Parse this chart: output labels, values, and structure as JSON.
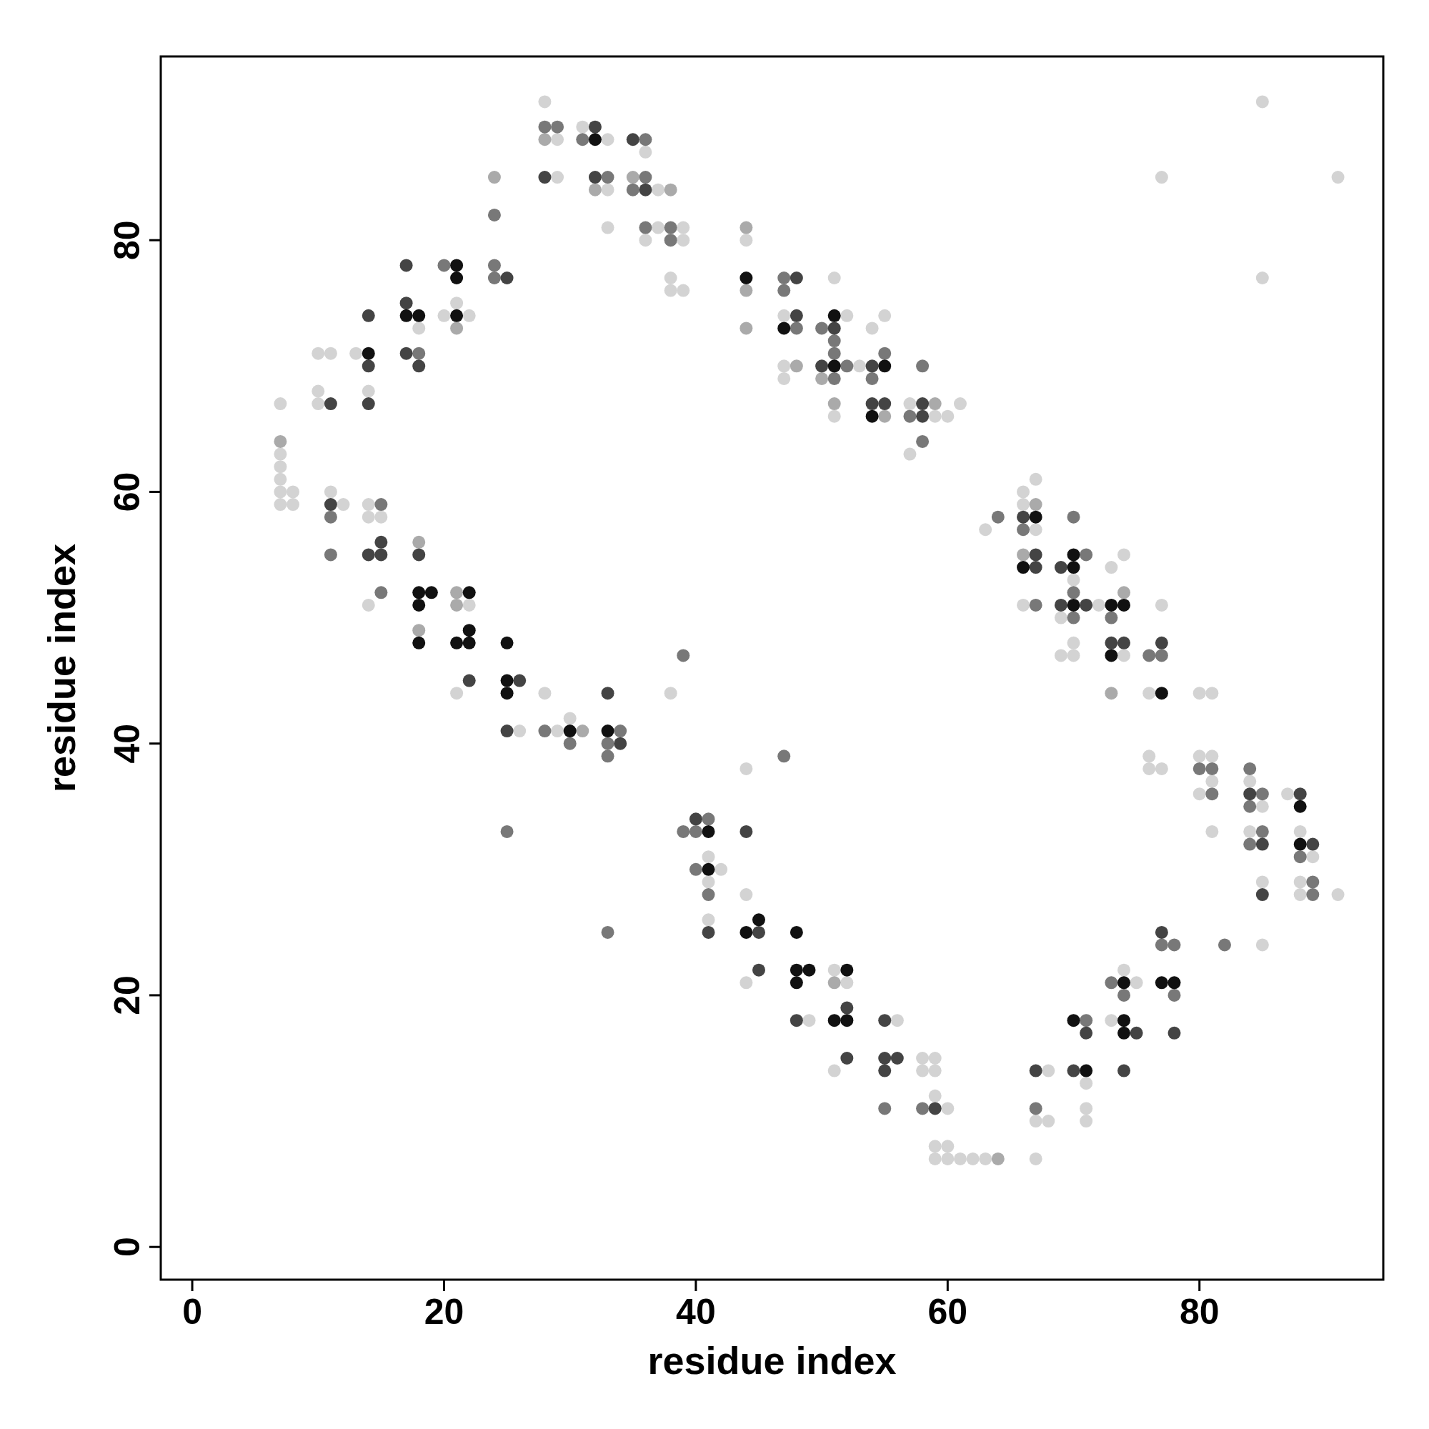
{
  "chart_data": {
    "type": "scatter",
    "xlabel": "residue index",
    "ylabel": "residue index",
    "xlim": [
      -2.5,
      94.6
    ],
    "ylim": [
      -2.6,
      94.6
    ],
    "xticks": [
      0,
      20,
      40,
      60,
      80
    ],
    "yticks": [
      0,
      20,
      40,
      60,
      80
    ],
    "marker": "circle",
    "series": [
      {
        "color": "#d3d3d3",
        "x": [
          7,
          7,
          7,
          7,
          7,
          7,
          8,
          8,
          10,
          10,
          10,
          11,
          13,
          14,
          18,
          20,
          21,
          22,
          28,
          29,
          29,
          31,
          33,
          33,
          33,
          36,
          36,
          37,
          37,
          38,
          38,
          39,
          39,
          39,
          44,
          47,
          47,
          47,
          51,
          51,
          52,
          53,
          54,
          55,
          57,
          57,
          59,
          60,
          61,
          63,
          66,
          66,
          66,
          67,
          67,
          69,
          69,
          70,
          70,
          70,
          72,
          73,
          74,
          74,
          76,
          76,
          76,
          77,
          77,
          80,
          80,
          80,
          81,
          81,
          81,
          81,
          84,
          84,
          85,
          85,
          85,
          87,
          88,
          88,
          88,
          89,
          91,
          91,
          85,
          85,
          77,
          11,
          12,
          14,
          14,
          14,
          15,
          21,
          22,
          26,
          28,
          29,
          30,
          38,
          41,
          41,
          41,
          42,
          44,
          44,
          44,
          49,
          51,
          51,
          52,
          56,
          58,
          58,
          59,
          59,
          59,
          59,
          59,
          60,
          60,
          60,
          61,
          62,
          63,
          67,
          67,
          68,
          68,
          71,
          71,
          71,
          73,
          74,
          75
        ],
        "values": [
          67,
          63,
          62,
          61,
          60,
          59,
          60,
          59,
          71,
          68,
          67,
          71,
          71,
          68,
          73,
          74,
          75,
          74,
          91,
          88,
          85,
          89,
          88,
          84,
          81,
          87,
          80,
          84,
          81,
          77,
          76,
          81,
          80,
          76,
          80,
          74,
          70,
          69,
          77,
          66,
          74,
          70,
          73,
          74,
          67,
          63,
          66,
          66,
          67,
          57,
          60,
          59,
          51,
          61,
          57,
          50,
          47,
          53,
          48,
          47,
          51,
          54,
          55,
          47,
          44,
          39,
          38,
          51,
          38,
          44,
          39,
          36,
          44,
          39,
          37,
          33,
          37,
          33,
          35,
          29,
          24,
          36,
          33,
          29,
          28,
          31,
          28,
          85,
          91,
          77,
          85,
          60,
          59,
          59,
          58,
          51,
          58,
          44,
          51,
          41,
          44,
          41,
          42,
          44,
          31,
          29,
          26,
          30,
          38,
          28,
          21,
          18,
          22,
          14,
          21,
          18,
          15,
          14,
          15,
          14,
          12,
          8,
          7,
          11,
          8,
          7,
          7,
          7,
          7,
          10,
          7,
          14,
          10,
          13,
          11,
          10,
          18,
          22,
          21
        ]
      },
      {
        "color": "#aaaaaa",
        "x": [
          7,
          21,
          24,
          28,
          32,
          35,
          38,
          44,
          44,
          44,
          48,
          50,
          51,
          55,
          59,
          66,
          67,
          73,
          74,
          18,
          18,
          21,
          21,
          31,
          51,
          64
        ],
        "values": [
          64,
          73,
          85,
          88,
          84,
          85,
          84,
          81,
          76,
          73,
          70,
          69,
          67,
          66,
          67,
          55,
          59,
          44,
          52,
          56,
          49,
          52,
          51,
          41,
          21,
          7
        ]
      },
      {
        "color": "#787878",
        "x": [
          18,
          20,
          24,
          24,
          24,
          28,
          29,
          31,
          33,
          35,
          36,
          36,
          36,
          38,
          38,
          47,
          47,
          48,
          50,
          51,
          51,
          51,
          52,
          54,
          55,
          57,
          58,
          58,
          64,
          66,
          67,
          70,
          70,
          70,
          71,
          73,
          76,
          77,
          80,
          81,
          81,
          84,
          84,
          84,
          85,
          85,
          88,
          89,
          89,
          82,
          11,
          11,
          15,
          15,
          25,
          28,
          30,
          33,
          33,
          33,
          34,
          39,
          39,
          40,
          40,
          41,
          41,
          47,
          55,
          58,
          67,
          71,
          73,
          74,
          77,
          78,
          78
        ],
        "values": [
          71,
          78,
          82,
          78,
          77,
          89,
          89,
          88,
          85,
          84,
          88,
          85,
          81,
          81,
          80,
          77,
          76,
          73,
          73,
          72,
          71,
          69,
          70,
          69,
          71,
          66,
          70,
          64,
          58,
          57,
          51,
          58,
          52,
          50,
          55,
          50,
          47,
          47,
          38,
          38,
          36,
          38,
          35,
          32,
          36,
          33,
          31,
          29,
          28,
          24,
          58,
          55,
          59,
          52,
          33,
          41,
          40,
          40,
          39,
          25,
          41,
          47,
          33,
          33,
          30,
          34,
          28,
          39,
          11,
          11,
          11,
          18,
          21,
          20,
          24,
          24,
          20
        ]
      },
      {
        "color": "#444444",
        "x": [
          17,
          17,
          18,
          25,
          28,
          32,
          32,
          35,
          36,
          48,
          48,
          50,
          51,
          54,
          54,
          55,
          58,
          58,
          66,
          67,
          67,
          69,
          69,
          71,
          73,
          74,
          77,
          84,
          85,
          85,
          88,
          89
        ],
        "values": [
          75,
          71,
          70,
          77,
          85,
          89,
          85,
          88,
          84,
          77,
          74,
          70,
          73,
          70,
          67,
          67,
          67,
          66,
          58,
          55,
          54,
          54,
          51,
          51,
          48,
          48,
          48,
          36,
          32,
          28,
          36,
          32
        ]
      },
      {
        "color": "#444444",
        "x": [
          11,
          11,
          14,
          15,
          15,
          18,
          22,
          25,
          26,
          33,
          34,
          40,
          41,
          44,
          45,
          45,
          48,
          52,
          52,
          55,
          55,
          55,
          56,
          59,
          67,
          70,
          71,
          74,
          75,
          77,
          78,
          14,
          14,
          14,
          17
        ],
        "values": [
          67,
          59,
          55,
          56,
          55,
          55,
          45,
          41,
          45,
          44,
          40,
          34,
          25,
          33,
          25,
          22,
          18,
          19,
          15,
          18,
          15,
          14,
          15,
          11,
          14,
          14,
          17,
          14,
          17,
          25,
          17,
          74,
          70,
          67,
          78
        ]
      },
      {
        "color": "#111111",
        "x": [
          14,
          17,
          18,
          21,
          21,
          21,
          32,
          44,
          47,
          51,
          51,
          54,
          55,
          66,
          67,
          70,
          70,
          70,
          73,
          73,
          74,
          77,
          18,
          18,
          18,
          19,
          21,
          22,
          22,
          22,
          25,
          25,
          25,
          30,
          33,
          41,
          41,
          44,
          45,
          48,
          48,
          48,
          49,
          51,
          52,
          52,
          70,
          71,
          74,
          74,
          74,
          77,
          78,
          88,
          88
        ],
        "values": [
          71,
          74,
          74,
          78,
          77,
          74,
          88,
          77,
          73,
          74,
          70,
          66,
          70,
          54,
          58,
          55,
          54,
          51,
          51,
          47,
          51,
          44,
          52,
          51,
          48,
          52,
          48,
          52,
          49,
          48,
          48,
          45,
          44,
          41,
          41,
          33,
          30,
          25,
          26,
          25,
          22,
          21,
          22,
          18,
          22,
          18,
          18,
          14,
          21,
          18,
          17,
          21,
          21,
          35,
          32
        ]
      }
    ]
  }
}
